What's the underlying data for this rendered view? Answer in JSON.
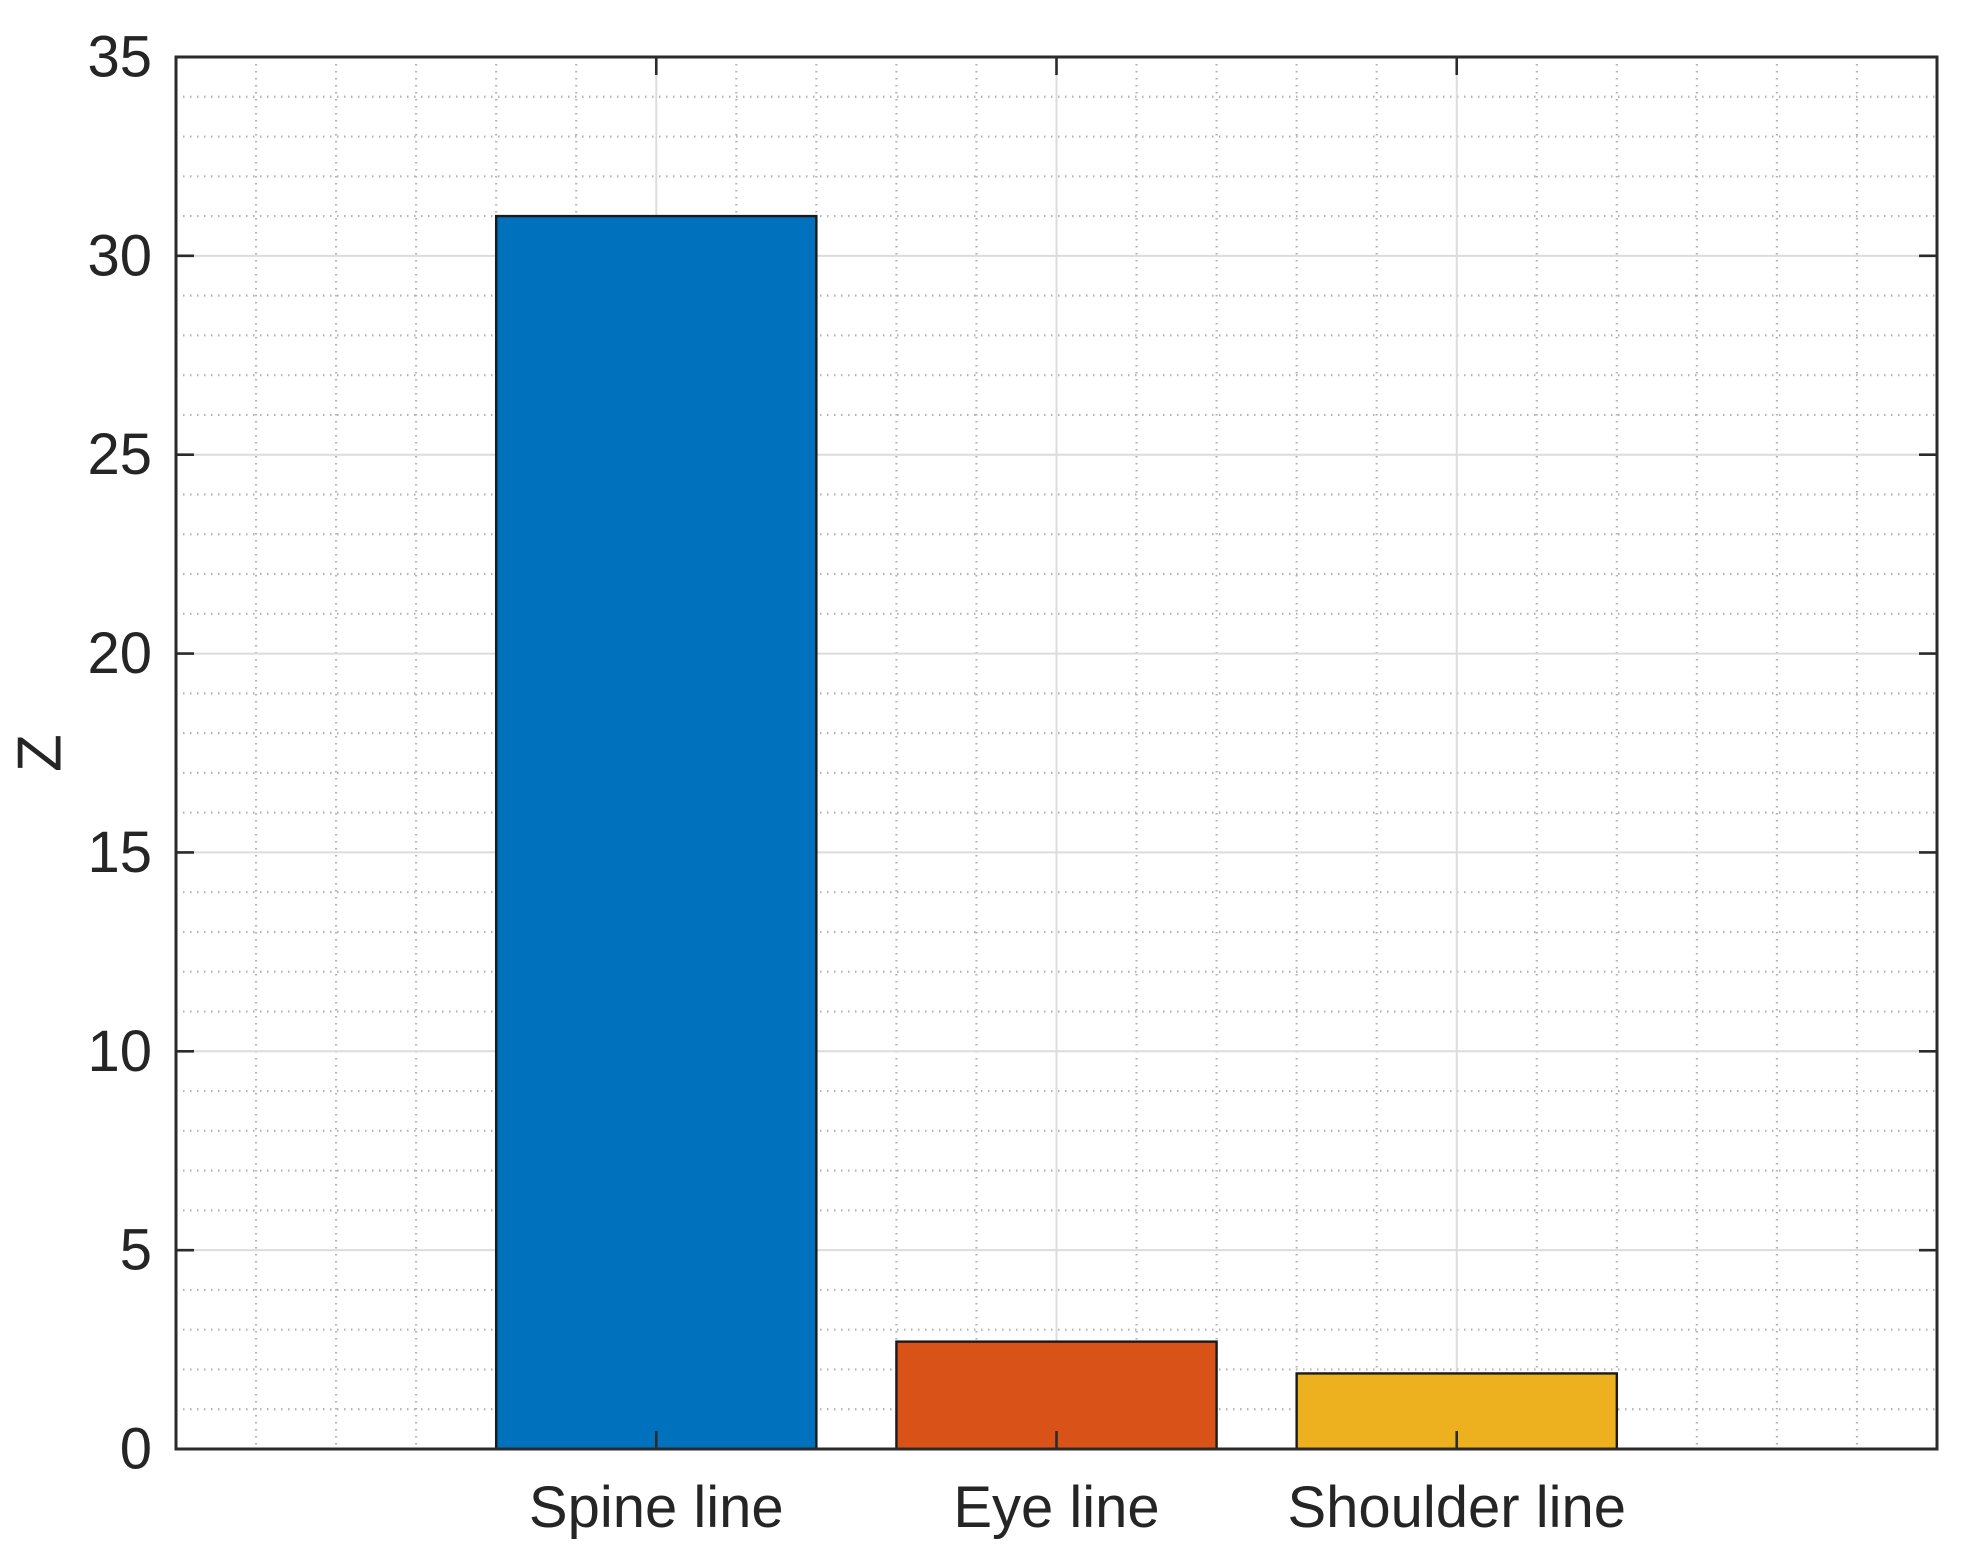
{
  "figure": {
    "background": "#ffffff"
  },
  "chart_data": {
    "type": "bar",
    "categories": [
      "Spine line",
      "Eye line",
      "Shoulder line"
    ],
    "values": [
      31,
      2.7,
      1.9
    ],
    "bar_colors": [
      "#0072BD",
      "#D95319",
      "#EDB120"
    ],
    "title": "",
    "xlabel": "",
    "ylabel": "Z",
    "ylim": [
      0,
      35
    ],
    "yticks": [
      0,
      5,
      10,
      15,
      20,
      25,
      30,
      35
    ],
    "ytick_labels": [
      "0",
      "5",
      "10",
      "15",
      "20",
      "25",
      "30",
      "35"
    ],
    "y_minor_step": 1,
    "xlim": [
      -0.2,
      4.2
    ],
    "x_minor_step": 0.2,
    "bar_width": 0.8,
    "grid": "on",
    "minor_grid": "on",
    "legend_position": "none"
  },
  "style": {
    "axis_color": "#2b2b2b",
    "major_grid_color": "#dcdcdc",
    "minor_grid_color": "#b3b3b3",
    "bar_edge_color": "#1a1a1a",
    "label_color": "#252525"
  }
}
